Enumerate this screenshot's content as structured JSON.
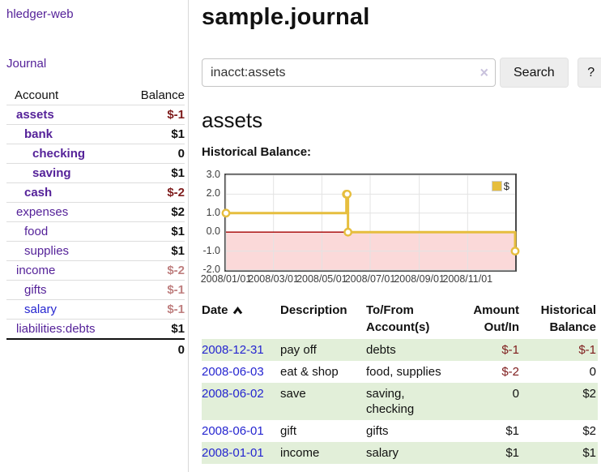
{
  "app": {
    "brand": "hledger-web"
  },
  "colors": {
    "link_purple": "#552299",
    "link_blue": "#2525d0",
    "negative_strong": "#7e1c1c",
    "negative_soft": "#bf7f7f",
    "row_green": "#e2efd9",
    "chart_gold": "#e6be3e",
    "chart_negative_region": "#fbd9d9",
    "chart_zero_line": "#a40000"
  },
  "sidebar": {
    "journal_link": "Journal",
    "table": {
      "account_header": "Account",
      "balance_header": "Balance",
      "rows": [
        {
          "account": "assets",
          "balance": "$-1",
          "depth": 1,
          "in_query": true,
          "balance_class": "neg-strong",
          "link_style": "purple"
        },
        {
          "account": "bank",
          "balance": "$1",
          "depth": 2,
          "in_query": true,
          "balance_class": "pos",
          "link_style": "purple"
        },
        {
          "account": "checking",
          "balance": "0",
          "depth": 3,
          "in_query": true,
          "balance_class": "pos",
          "link_style": "purple"
        },
        {
          "account": "saving",
          "balance": "$1",
          "depth": 3,
          "in_query": true,
          "balance_class": "pos",
          "link_style": "purple"
        },
        {
          "account": "cash",
          "balance": "$-2",
          "depth": 2,
          "in_query": true,
          "balance_class": "neg-strong",
          "link_style": "purple"
        },
        {
          "account": "expenses",
          "balance": "$2",
          "depth": 1,
          "in_query": false,
          "balance_class": "pos",
          "link_style": "purple"
        },
        {
          "account": "food",
          "balance": "$1",
          "depth": 2,
          "in_query": false,
          "balance_class": "pos",
          "link_style": "purple"
        },
        {
          "account": "supplies",
          "balance": "$1",
          "depth": 2,
          "in_query": false,
          "balance_class": "pos",
          "link_style": "purple"
        },
        {
          "account": "income",
          "balance": "$-2",
          "depth": 1,
          "in_query": false,
          "balance_class": "neg-soft",
          "link_style": "purple"
        },
        {
          "account": "gifts",
          "balance": "$-1",
          "depth": 2,
          "in_query": false,
          "balance_class": "neg-soft",
          "link_style": "purple"
        },
        {
          "account": "salary",
          "balance": "$-1",
          "depth": 2,
          "in_query": false,
          "balance_class": "neg-soft",
          "link_style": "blue"
        },
        {
          "account": "liabilities:debts",
          "balance": "$1",
          "depth": 1,
          "in_query": false,
          "balance_class": "pos",
          "link_style": "purple"
        }
      ],
      "total": "0"
    }
  },
  "main": {
    "title": "sample.journal",
    "search": {
      "value": "inacct:assets",
      "clear_icon": "×",
      "button_label": "Search",
      "help_button_label": "?"
    },
    "account_heading": "assets",
    "chart_label": "Historical Balance:"
  },
  "chart_data": {
    "type": "line",
    "title": "Historical Balance:",
    "step": true,
    "series": [
      {
        "name": "$",
        "points": [
          [
            "2008-01-01",
            1
          ],
          [
            "2008-06-01",
            2
          ],
          [
            "2008-06-02",
            2
          ],
          [
            "2008-06-03",
            0
          ],
          [
            "2008-12-31",
            -1
          ]
        ]
      }
    ],
    "x_range": [
      "2008-01-01",
      "2008-12-31"
    ],
    "ylim": [
      -2,
      3
    ],
    "y_ticks": [
      "3.0",
      "2.0",
      "1.0",
      "0.0",
      "-1.0",
      "-2.0"
    ],
    "x_tick_labels": [
      "2008/01/01",
      "2008/03/01",
      "2008/05/01",
      "2008/07/01",
      "2008/09/01",
      "2008/11/01"
    ],
    "grid": true,
    "legend_position": "top-right",
    "negative_region_shaded": true
  },
  "register": {
    "headers": [
      "Date",
      "Description",
      "To/From Account(s)",
      "Amount Out/In",
      "Historical Balance"
    ],
    "sort_icon": "chevron-up",
    "rows": [
      {
        "date": "2008-12-31",
        "description": "pay off",
        "accounts": "debts",
        "amount": "$-1",
        "balance": "$-1",
        "amount_negative": true,
        "balance_negative": true,
        "green": true
      },
      {
        "date": "2008-06-03",
        "description": "eat & shop",
        "accounts": "food, supplies",
        "amount": "$-2",
        "balance": "0",
        "amount_negative": true,
        "balance_negative": false,
        "green": false
      },
      {
        "date": "2008-06-02",
        "description": "save",
        "accounts": "saving, checking",
        "amount": "0",
        "balance": "$2",
        "amount_negative": false,
        "balance_negative": false,
        "green": true
      },
      {
        "date": "2008-06-01",
        "description": "gift",
        "accounts": "gifts",
        "amount": "$1",
        "balance": "$2",
        "amount_negative": false,
        "balance_negative": false,
        "green": false
      },
      {
        "date": "2008-01-01",
        "description": "income",
        "accounts": "salary",
        "amount": "$1",
        "balance": "$1",
        "amount_negative": false,
        "balance_negative": false,
        "green": true
      }
    ]
  }
}
